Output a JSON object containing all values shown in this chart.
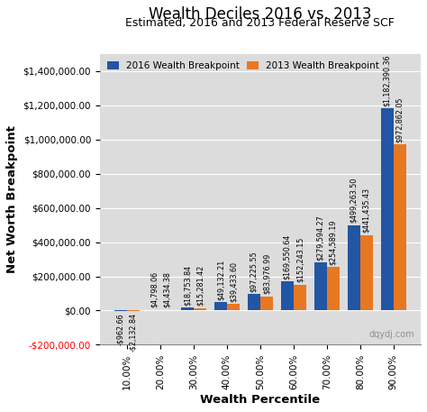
{
  "title": "Wealth Deciles 2016 vs. 2013",
  "subtitle": "Estimated, 2016 and 2013 Federal Reserve SCF",
  "categories": [
    "10.00%",
    "20.00%",
    "30.00%",
    "40.00%",
    "50.00%",
    "60.00%",
    "70.00%",
    "80.00%",
    "90.00%"
  ],
  "values_2016": [
    -962.66,
    4798.06,
    18753.84,
    49132.21,
    97225.55,
    169550.64,
    279594.27,
    499263.5,
    1182390.36
  ],
  "values_2013": [
    -2132.84,
    4434.38,
    15281.42,
    39433.6,
    83976.99,
    152243.15,
    254589.19,
    441435.43,
    972862.05
  ],
  "labels_2016": [
    "-$962.66",
    "$4,798.06",
    "$18,753.84",
    "$49,132.21",
    "$97,225.55",
    "$169,550.64",
    "$279,594.27",
    "$499,263.50",
    "$1,182,390.36"
  ],
  "labels_2013": [
    "-$2,132.84",
    "$4,434.38",
    "$15,281.42",
    "$39,433.60",
    "$83,976.99",
    "$152,243.15",
    "$254,589.19",
    "$441,435.43",
    "$972,862.05"
  ],
  "color_2016": "#2255a4",
  "color_2013": "#e87722",
  "xlabel": "Wealth Percentile",
  "ylabel": "Net Worth Breakpoint",
  "ylim_min": -200000,
  "ylim_max": 1500000,
  "yticks": [
    -200000,
    0,
    200000,
    400000,
    600000,
    800000,
    1000000,
    1200000,
    1400000
  ],
  "legend_2016": "2016 Wealth Breakpoint",
  "legend_2013": "2013 Wealth Breakpoint",
  "watermark": "dqydj.com",
  "bg_color": "#dcdcdc",
  "title_fontsize": 12,
  "subtitle_fontsize": 9,
  "label_fontsize": 5.8,
  "bar_width": 0.38
}
